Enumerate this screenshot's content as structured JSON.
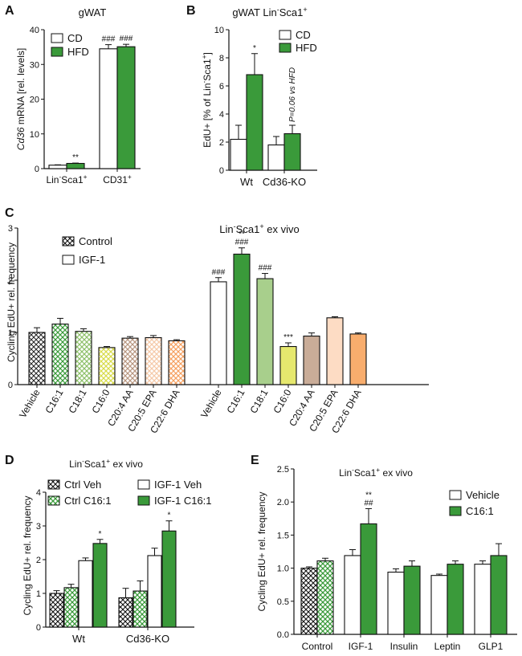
{
  "colors": {
    "green": "#3a9a3a",
    "white": "#ffffff",
    "outline": "#111111"
  },
  "chart_data": [
    {
      "panel": "A",
      "type": "bar",
      "title": "gWAT",
      "ylabel_prefix": "Cd36",
      "ylabel_suffix": " mRNA [rel. levels]",
      "categories": [
        "Lin-Sca1+",
        "CD31+"
      ],
      "category_labels": [
        {
          "parts": [
            "Lin",
            "-",
            "Sca1",
            "+"
          ]
        },
        {
          "parts": [
            "CD31",
            "+"
          ]
        }
      ],
      "series": [
        {
          "name": "CD",
          "fill": "white",
          "values": [
            1.0,
            34.5
          ],
          "errors": [
            0.1,
            1.2
          ]
        },
        {
          "name": "HFD",
          "fill": "green",
          "values": [
            1.5,
            35.1
          ],
          "errors": [
            0.1,
            0.7
          ]
        }
      ],
      "annotations": [
        "",
        "**",
        "###",
        "###"
      ],
      "ylim": [
        0,
        40
      ],
      "yticks": [
        "0",
        "10",
        "20",
        "30",
        "40"
      ],
      "legend": "top-left"
    },
    {
      "panel": "B",
      "type": "bar",
      "title_parts": [
        "gWAT Lin",
        "-",
        "Sca1",
        "+"
      ],
      "ylabel_parts": [
        "EdU+ [% of Lin",
        "-",
        "Sca1",
        "+",
        "]"
      ],
      "categories": [
        "Wt",
        "Cd36-KO"
      ],
      "series": [
        {
          "name": "CD",
          "fill": "white",
          "values": [
            2.2,
            1.8
          ],
          "errors": [
            1.0,
            0.6
          ]
        },
        {
          "name": "HFD",
          "fill": "green",
          "values": [
            6.8,
            2.6
          ],
          "errors": [
            1.5,
            0.6
          ]
        }
      ],
      "annotations": [
        "",
        "*",
        "",
        ""
      ],
      "side_note": "P=0.06 vs HFD",
      "ylim": [
        0,
        10
      ],
      "yticks": [
        "0",
        "2",
        "4",
        "6",
        "8",
        "10"
      ],
      "legend": "top-right"
    },
    {
      "panel": "C",
      "type": "bar",
      "title_parts": [
        "Lin",
        "-",
        "Sca1",
        "+",
        " ex vivo"
      ],
      "ylabel": "Cycling EdU+ rel. frequency",
      "groups": [
        {
          "name": "Control",
          "categories": [
            "Vehicle",
            "C16:1",
            "C18:1",
            "C16:0",
            "C20:4 AA",
            "C20:5 EPA",
            "C22:6 DHA"
          ],
          "values": [
            1.0,
            1.16,
            1.02,
            0.71,
            0.89,
            0.9,
            0.84
          ],
          "errors": [
            0.09,
            0.11,
            0.05,
            0.02,
            0.03,
            0.04,
            0.02
          ],
          "annotations": [
            "",
            "",
            "",
            "",
            "",
            "",
            ""
          ]
        },
        {
          "name": "IGF-1",
          "categories": [
            "Vehicle",
            "C16:1",
            "C18:1",
            "C16:0",
            "C20:4 AA",
            "C20:5 EPA",
            "C22:6 DHA"
          ],
          "values": [
            1.97,
            2.5,
            2.03,
            0.73,
            0.93,
            1.28,
            0.97
          ],
          "errors": [
            0.08,
            0.12,
            0.1,
            0.07,
            0.06,
            0.02,
            0.02
          ],
          "annotations": [
            "###",
            "**\n###",
            "###",
            "***",
            "",
            "",
            ""
          ]
        }
      ],
      "bar_colors": [
        "#ffffff",
        "#3a9a3a",
        "#a8cf8c",
        "#e6e86e",
        "#c9ac98",
        "#fddcc4",
        "#f8ad6d"
      ],
      "ylim": [
        0,
        3
      ],
      "yticks": [
        "0",
        "1",
        "2",
        "3"
      ],
      "legend": [
        {
          "name": "Control",
          "pattern": "crosshatch"
        },
        {
          "name": "IGF-1",
          "pattern": "solid"
        }
      ]
    },
    {
      "panel": "D",
      "type": "bar",
      "title_parts": [
        "Lin",
        "-",
        "Sca1",
        "+",
        " ex vivo"
      ],
      "ylabel": "Cycling EdU+ rel. frequency",
      "categories": [
        "Wt",
        "Cd36-KO"
      ],
      "series": [
        {
          "name": "Ctrl Veh",
          "style": "hatch-black",
          "values": [
            1.0,
            0.87
          ],
          "errors": [
            0.08,
            0.28
          ]
        },
        {
          "name": "Ctrl C16:1",
          "style": "hatch-green",
          "values": [
            1.17,
            1.07
          ],
          "errors": [
            0.1,
            0.3
          ]
        },
        {
          "name": "IGF-1 Veh",
          "style": "white",
          "values": [
            1.97,
            2.12
          ],
          "errors": [
            0.08,
            0.22
          ]
        },
        {
          "name": "IGF-1 C16:1",
          "style": "green",
          "values": [
            2.48,
            2.85
          ],
          "errors": [
            0.12,
            0.3
          ]
        }
      ],
      "annotations": {
        "IGF-1 C16:1": [
          "*",
          "*"
        ]
      },
      "ylim": [
        0,
        4
      ],
      "yticks": [
        "0",
        "1",
        "2",
        "3",
        "4"
      ],
      "legend": "top-left, two columns"
    },
    {
      "panel": "E",
      "type": "bar",
      "title_parts": [
        "Lin",
        "-",
        "Sca1",
        "+",
        " ex vivo"
      ],
      "ylabel": "Cycling EdU+ rel. frequency",
      "categories": [
        "Control",
        "IGF-1",
        "Insulin",
        "Leptin",
        "GLP1"
      ],
      "series": [
        {
          "name": "Vehicle",
          "fill": "white",
          "values": [
            1.0,
            1.19,
            0.94,
            0.89,
            1.06
          ],
          "errors": [
            0.02,
            0.09,
            0.05,
            0.02,
            0.05
          ]
        },
        {
          "name": "C16:1",
          "fill": "green",
          "values": [
            1.11,
            1.67,
            1.03,
            1.06,
            1.19
          ],
          "errors": [
            0.04,
            0.23,
            0.08,
            0.05,
            0.18
          ]
        }
      ],
      "hatched_categories": [
        "Control"
      ],
      "annotations": {
        "C16:1": [
          "",
          "**\n##",
          "",
          "",
          ""
        ]
      },
      "ylim": [
        0,
        2.5
      ],
      "yticks": [
        "0.0",
        "0.5",
        "1.0",
        "1.5",
        "2.0",
        "2.5"
      ],
      "legend": "top-right"
    }
  ]
}
